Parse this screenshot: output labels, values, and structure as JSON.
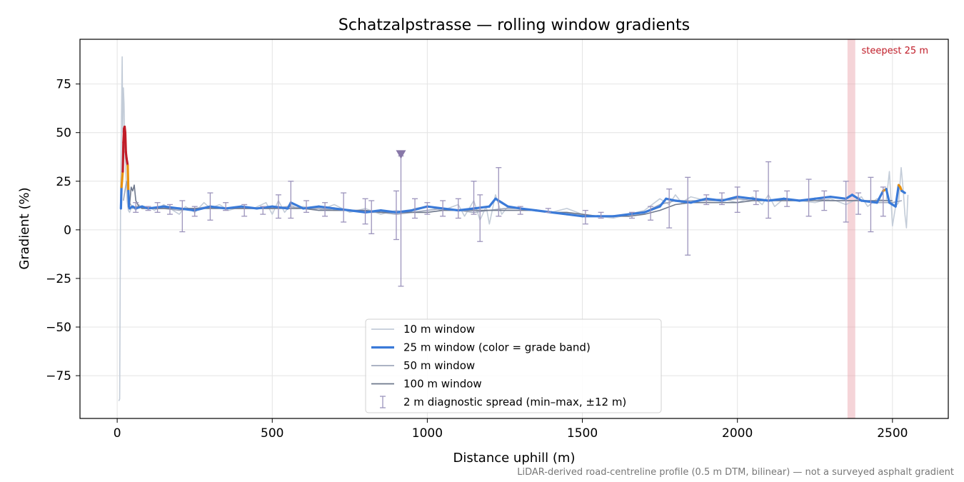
{
  "chart_data": {
    "type": "line",
    "title": "Schatzalpstrasse — rolling window gradients",
    "xlabel": "Distance uphill (m)",
    "ylabel": "Gradient (%)",
    "xlim": [
      -120,
      2680
    ],
    "ylim": [
      -97,
      98
    ],
    "xticks": [
      0,
      500,
      1000,
      1500,
      2000,
      2500
    ],
    "yticks": [
      -75,
      -50,
      -25,
      0,
      25,
      50,
      75
    ],
    "xtick_labels": [
      "0",
      "500",
      "1000",
      "1500",
      "2000",
      "2500"
    ],
    "ytick_labels": [
      "−75",
      "−50",
      "−25",
      "0",
      "25",
      "50",
      "75"
    ],
    "grid": true,
    "legend_position": "lower-center",
    "steepest_band": {
      "x_start": 2355,
      "x_end": 2380,
      "label": "steepest 25 m",
      "color": "#e8a0a8"
    },
    "marker": {
      "x": 915,
      "y": 38,
      "color": "#8878a8"
    },
    "footnote": "LiDAR-derived road-centreline profile (0.5 m DTM, bilinear) — not a surveyed asphalt gradient",
    "series": [
      {
        "name": "10 m window",
        "color": "#c3ccd8",
        "x": [
          5,
          8,
          11,
          14,
          16,
          18,
          20,
          22,
          25,
          28,
          32,
          36,
          40,
          45,
          50,
          60,
          70,
          80,
          100,
          120,
          150,
          180,
          200,
          220,
          250,
          280,
          300,
          330,
          360,
          400,
          440,
          480,
          500,
          520,
          540,
          560,
          580,
          600,
          650,
          700,
          750,
          800,
          850,
          900,
          930,
          960,
          1000,
          1050,
          1100,
          1120,
          1150,
          1170,
          1190,
          1200,
          1220,
          1240,
          1260,
          1300,
          1350,
          1400,
          1450,
          1500,
          1550,
          1600,
          1650,
          1700,
          1750,
          1780,
          1800,
          1820,
          1850,
          1900,
          1950,
          2000,
          2050,
          2080,
          2100,
          2120,
          2150,
          2200,
          2250,
          2300,
          2350,
          2400,
          2420,
          2450,
          2480,
          2490,
          2500,
          2510,
          2520,
          2528,
          2535,
          2540,
          2545,
          2550
        ],
        "values": [
          -88,
          -87,
          20,
          60,
          89,
          50,
          73,
          65,
          40,
          28,
          15,
          10,
          9,
          11,
          12,
          10,
          13,
          11,
          12,
          10,
          13,
          10,
          8,
          12,
          9,
          14,
          11,
          13,
          10,
          12,
          11,
          14,
          8,
          15,
          9,
          13,
          11,
          12,
          10,
          13,
          9,
          11,
          8,
          10,
          9,
          11,
          12,
          10,
          13,
          7,
          15,
          5,
          12,
          3,
          18,
          8,
          12,
          11,
          10,
          9,
          11,
          8,
          7,
          6,
          8,
          10,
          16,
          13,
          18,
          14,
          17,
          15,
          16,
          14,
          17,
          13,
          18,
          12,
          16,
          15,
          14,
          16,
          13,
          17,
          12,
          16,
          15,
          30,
          2,
          12,
          14,
          32,
          20,
          8,
          1,
          18
        ]
      },
      {
        "name": "25 m window (color = grade band)",
        "color": "#3a7ad8",
        "x": [
          12,
          14,
          16,
          18,
          20,
          22,
          24,
          26,
          28,
          30,
          32,
          34,
          36,
          38,
          40,
          50,
          60,
          80,
          100,
          150,
          200,
          250,
          300,
          350,
          400,
          450,
          500,
          550,
          560,
          600,
          650,
          700,
          750,
          800,
          850,
          900,
          950,
          1000,
          1050,
          1100,
          1150,
          1200,
          1220,
          1240,
          1260,
          1300,
          1350,
          1400,
          1450,
          1500,
          1550,
          1600,
          1650,
          1700,
          1750,
          1770,
          1800,
          1850,
          1900,
          1950,
          2000,
          2050,
          2100,
          2150,
          2200,
          2250,
          2300,
          2350,
          2370,
          2400,
          2450,
          2470,
          2480,
          2490,
          2500,
          2510,
          2520,
          2525,
          2530,
          2540
        ],
        "values": [
          11,
          22,
          26,
          30,
          45,
          52,
          53,
          50,
          40,
          37,
          35,
          33,
          20,
          12,
          11,
          12,
          11,
          12,
          11,
          12,
          11,
          10,
          12,
          11,
          12,
          11,
          12,
          11,
          14,
          11,
          12,
          11,
          10,
          9,
          10,
          9,
          10,
          12,
          11,
          10,
          11,
          12,
          16,
          14,
          12,
          11,
          10,
          9,
          8,
          7,
          7,
          7,
          8,
          9,
          12,
          16,
          15,
          14,
          16,
          15,
          17,
          16,
          15,
          16,
          15,
          16,
          17,
          16,
          18,
          15,
          14,
          20,
          21,
          14,
          13,
          12,
          23,
          22,
          20,
          19
        ],
        "band_colors": {
          "low": "#3a7ad8",
          "mid": "#e8900c",
          "high": "#c01c28"
        }
      },
      {
        "name": "50 m window",
        "color": "#a0a8bc",
        "x": [
          20,
          30,
          40,
          50,
          60,
          80,
          100,
          150,
          200,
          250,
          300,
          350,
          400,
          450,
          500,
          550,
          600,
          650,
          700,
          750,
          800,
          850,
          900,
          950,
          1000,
          1050,
          1100,
          1150,
          1200,
          1250,
          1300,
          1350,
          1400,
          1450,
          1500,
          1550,
          1600,
          1650,
          1700,
          1750,
          1800,
          1850,
          1900,
          1950,
          2000,
          2050,
          2100,
          2150,
          2200,
          2250,
          2300,
          2350,
          2400,
          2450,
          2500,
          2530
        ],
        "values": [
          15,
          25,
          14,
          11,
          12,
          12,
          11,
          11,
          10,
          11,
          12,
          11,
          11,
          11,
          11,
          12,
          11,
          11,
          10,
          10,
          9,
          9,
          8,
          9,
          10,
          11,
          10,
          9,
          10,
          11,
          11,
          10,
          9,
          8,
          7,
          7,
          7,
          8,
          9,
          13,
          15,
          15,
          15,
          15,
          16,
          15,
          15,
          15,
          15,
          16,
          15,
          15,
          15,
          14,
          14,
          15
        ]
      },
      {
        "name": "100 m window",
        "color": "#6e788c",
        "x": [
          40,
          45,
          50,
          55,
          60,
          70,
          80,
          100,
          150,
          200,
          250,
          300,
          350,
          400,
          450,
          500,
          550,
          600,
          650,
          700,
          750,
          800,
          850,
          900,
          950,
          1000,
          1050,
          1100,
          1150,
          1200,
          1250,
          1300,
          1350,
          1400,
          1450,
          1500,
          1550,
          1600,
          1650,
          1700,
          1750,
          1800,
          1850,
          1900,
          1950,
          2000,
          2050,
          2100,
          2150,
          2200,
          2250,
          2300,
          2350,
          2400,
          2450,
          2500
        ],
        "values": [
          13,
          22,
          20,
          23,
          15,
          12,
          11,
          11,
          11,
          11,
          11,
          11,
          11,
          11,
          11,
          11,
          11,
          11,
          10,
          10,
          10,
          10,
          9,
          9,
          9,
          9,
          10,
          10,
          10,
          10,
          10,
          10,
          10,
          9,
          9,
          8,
          7,
          7,
          7,
          8,
          10,
          13,
          14,
          14,
          14,
          14,
          15,
          15,
          15,
          15,
          15,
          15,
          15,
          15,
          15,
          15
        ]
      },
      {
        "name": "2 m diagnostic spread (min–max, ±12 m)",
        "color": "#9c94bc",
        "x": [
          60,
          100,
          130,
          170,
          210,
          250,
          300,
          350,
          410,
          470,
          520,
          560,
          610,
          670,
          730,
          800,
          820,
          900,
          915,
          960,
          1000,
          1050,
          1100,
          1150,
          1170,
          1230,
          1300,
          1390,
          1510,
          1560,
          1660,
          1720,
          1780,
          1840,
          1900,
          1950,
          2000,
          2060,
          2100,
          2160,
          2230,
          2280,
          2350,
          2390,
          2430,
          2470
        ],
        "lower": [
          9,
          10,
          9,
          8,
          -1,
          7,
          5,
          10,
          7,
          8,
          6,
          6,
          9,
          7,
          4,
          3,
          -2,
          -5,
          -29,
          6,
          8,
          7,
          6,
          8,
          -6,
          7,
          8,
          9,
          3,
          6,
          6,
          5,
          1,
          -13,
          13,
          13,
          9,
          13,
          6,
          12,
          7,
          10,
          4,
          8,
          -1,
          7
        ],
        "upper": [
          14,
          12,
          14,
          13,
          15,
          12,
          19,
          14,
          13,
          12,
          18,
          25,
          15,
          14,
          19,
          16,
          15,
          20,
          38,
          16,
          14,
          15,
          16,
          25,
          18,
          32,
          12,
          11,
          10,
          9,
          9,
          12,
          21,
          27,
          18,
          19,
          22,
          20,
          35,
          20,
          26,
          20,
          25,
          19,
          27,
          22
        ]
      }
    ]
  }
}
